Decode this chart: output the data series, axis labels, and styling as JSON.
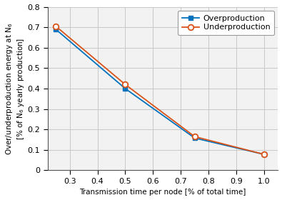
{
  "x": [
    0.25,
    0.5,
    0.75,
    1.0
  ],
  "overproduction": [
    0.69,
    0.4,
    0.158,
    0.078
  ],
  "underproduction": [
    0.705,
    0.42,
    0.165,
    0.078
  ],
  "over_color": "#0072BD",
  "under_color": "#D95319",
  "over_label": "Overproduction",
  "under_label": "Underproduction",
  "xlabel": "Transmission time per node [% of total time]",
  "ylabel_line1": "Over/underproduction energy at N",
  "ylabel_sub1": "6",
  "ylabel_line2": "[% of N",
  "ylabel_sub2": "6",
  "ylabel_line2b": " yearly production]",
  "xlim": [
    0.22,
    1.05
  ],
  "ylim": [
    0.0,
    0.8
  ],
  "xticks": [
    0.3,
    0.4,
    0.5,
    0.6,
    0.7,
    0.8,
    0.9,
    1.0
  ],
  "yticks": [
    0.0,
    0.1,
    0.2,
    0.3,
    0.4,
    0.5,
    0.6,
    0.7,
    0.8
  ],
  "grid_color": "#c8c8c8",
  "bg_color": "#f2f2f2",
  "xlabel_fontsize": 7.5,
  "ylabel_fontsize": 7.5,
  "tick_fontsize": 8,
  "legend_fontsize": 8
}
